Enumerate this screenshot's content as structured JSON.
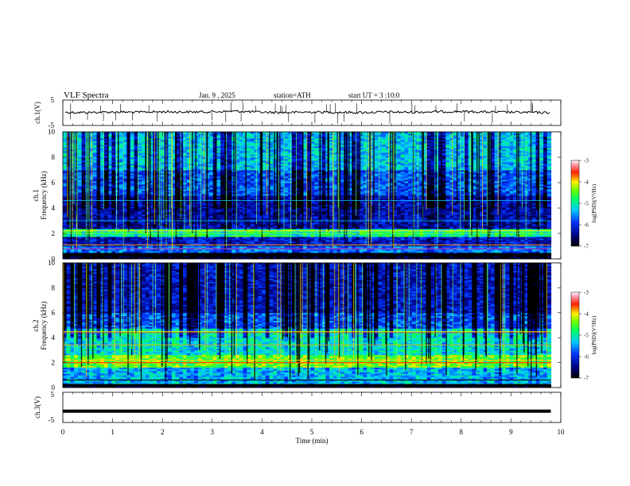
{
  "header": {
    "title": "VLF Spectra",
    "date": "Jan. 9 , 2025",
    "station": "station=ATH",
    "start": "start UT = 3 :10:0"
  },
  "chart_data": [
    {
      "type": "line",
      "name": "ch.1 waveform",
      "ylabel": "ch.1(V)",
      "ylim": [
        -5,
        5
      ],
      "yticks": [
        "5",
        "-5"
      ],
      "xlim": [
        0,
        10
      ],
      "x": [
        0,
        0.5,
        1,
        1.5,
        2,
        2.5,
        3,
        3.5,
        4,
        4.5,
        5,
        5.5,
        6,
        6.5,
        7,
        7.5,
        8,
        8.5,
        9,
        9.5,
        9.8
      ],
      "y": [
        0.2,
        0.1,
        0.3,
        0.2,
        0.4,
        0.3,
        0.4,
        0.6,
        0.2,
        0.1,
        0.3,
        0.2,
        0.1,
        0.3,
        0.2,
        0.4,
        0.5,
        0.3,
        0.2,
        0.1,
        0.0
      ]
    },
    {
      "type": "heatmap",
      "name": "ch.1 spectrogram",
      "ylabel": "ch.1\nFrequency (kHz)",
      "ylabel_line1": "ch.1",
      "ylabel_line2": "Frequency (kHz)",
      "ylim": [
        0,
        10
      ],
      "yticks": [
        "0",
        "2",
        "4",
        "6",
        "8",
        "10"
      ],
      "xlim": [
        0,
        10
      ],
      "colorbar": {
        "label": "log(PSD)(V²/Hz)",
        "ticks": [
          "-3",
          "-4",
          "-5",
          "-6",
          "-7"
        ],
        "range": [
          -7,
          -3
        ]
      }
    },
    {
      "type": "heatmap",
      "name": "ch.2 spectrogram",
      "ylabel": "ch.2\nFrequency (kHz)",
      "ylabel_line1": "ch.2",
      "ylabel_line2": "Frequency (kHz)",
      "ylim": [
        0,
        10
      ],
      "yticks": [
        "0",
        "2",
        "4",
        "6",
        "8",
        "10"
      ],
      "xlim": [
        0,
        10
      ],
      "colorbar": {
        "label": "log(PSD)(V²/Hz)",
        "ticks": [
          "-3",
          "-4",
          "-5",
          "-6",
          "-7"
        ],
        "range": [
          -7,
          -3
        ]
      }
    },
    {
      "type": "line",
      "name": "ch.3 waveform",
      "ylabel": "ch.3(V)",
      "ylim": [
        -5,
        5
      ],
      "yticks": [
        "5",
        "-5"
      ],
      "xlim": [
        0,
        10
      ],
      "x": [
        0,
        9.8
      ],
      "y": [
        -1.5,
        -1.5
      ]
    }
  ],
  "xaxis": {
    "label": "Time (min)",
    "ticks": [
      "0",
      "1",
      "2",
      "3",
      "4",
      "5",
      "6",
      "7",
      "8",
      "9",
      "10"
    ]
  }
}
